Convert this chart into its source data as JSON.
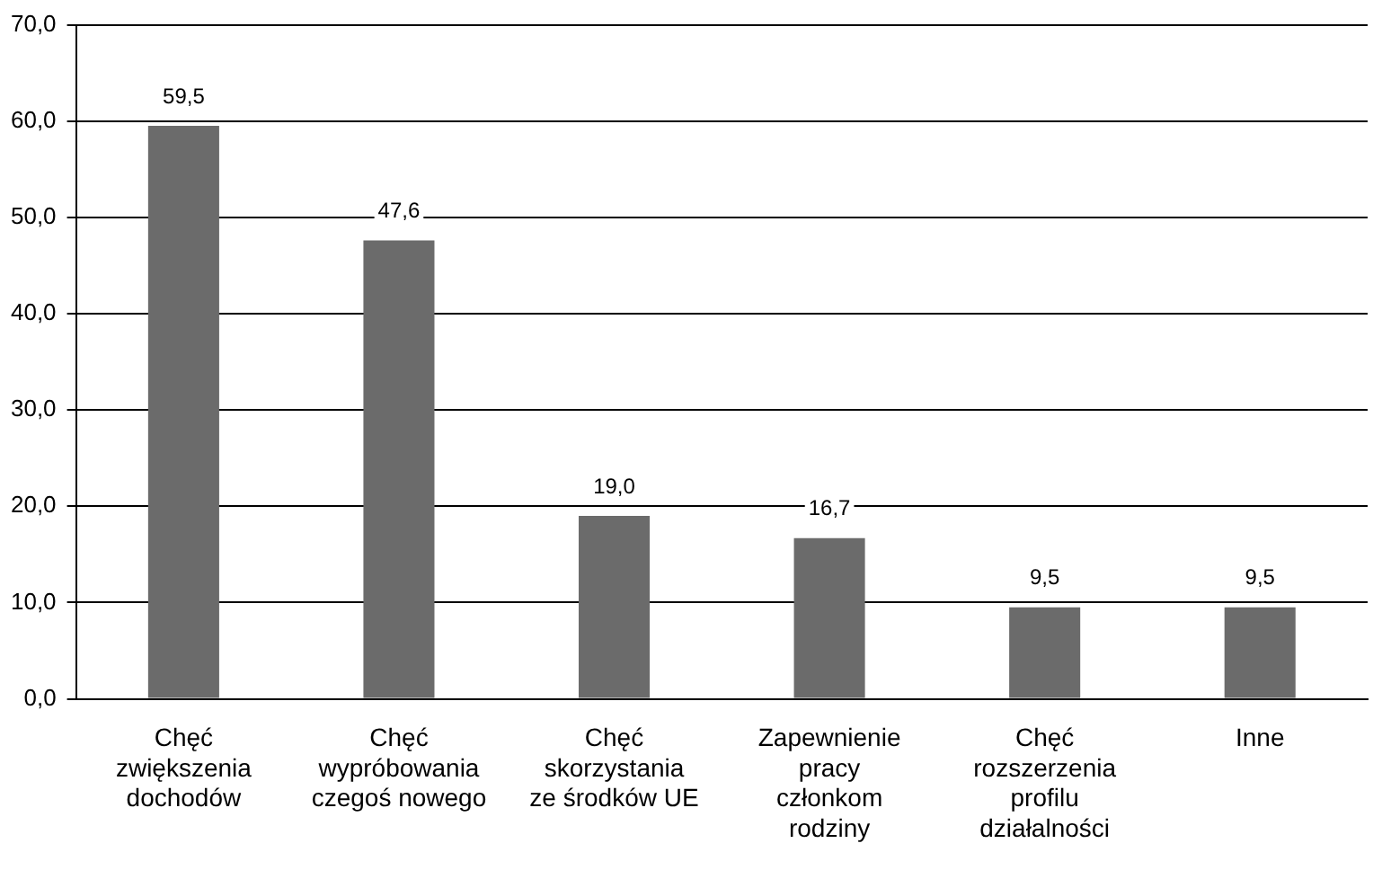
{
  "chart_data": {
    "type": "bar",
    "categories": [
      "Chęć zwiększenia dochodów",
      "Chęć wypróbowania czegoś nowego",
      "Chęć skorzystania ze środków UE",
      "Zapewnienie pracy członkom rodziny",
      "Chęć rozszerzenia profilu działalności",
      "Inne"
    ],
    "values": [
      59.5,
      47.6,
      19.0,
      16.7,
      9.5,
      9.5
    ],
    "value_labels": [
      "59,5",
      "47,6",
      "19,0",
      "16,7",
      "9,5",
      "9,5"
    ],
    "color": "#6b6b6b",
    "ylim": [
      0,
      70
    ],
    "yticks": [
      {
        "value": 0,
        "label": "0,0"
      },
      {
        "value": 10,
        "label": "10,0"
      },
      {
        "value": 20,
        "label": "20,0"
      },
      {
        "value": 30,
        "label": "30,0"
      },
      {
        "value": 40,
        "label": "40,0"
      },
      {
        "value": 50,
        "label": "50,0"
      },
      {
        "value": 60,
        "label": "60,0"
      },
      {
        "value": 70,
        "label": "70,0"
      }
    ],
    "grid": "y",
    "legend": false
  }
}
